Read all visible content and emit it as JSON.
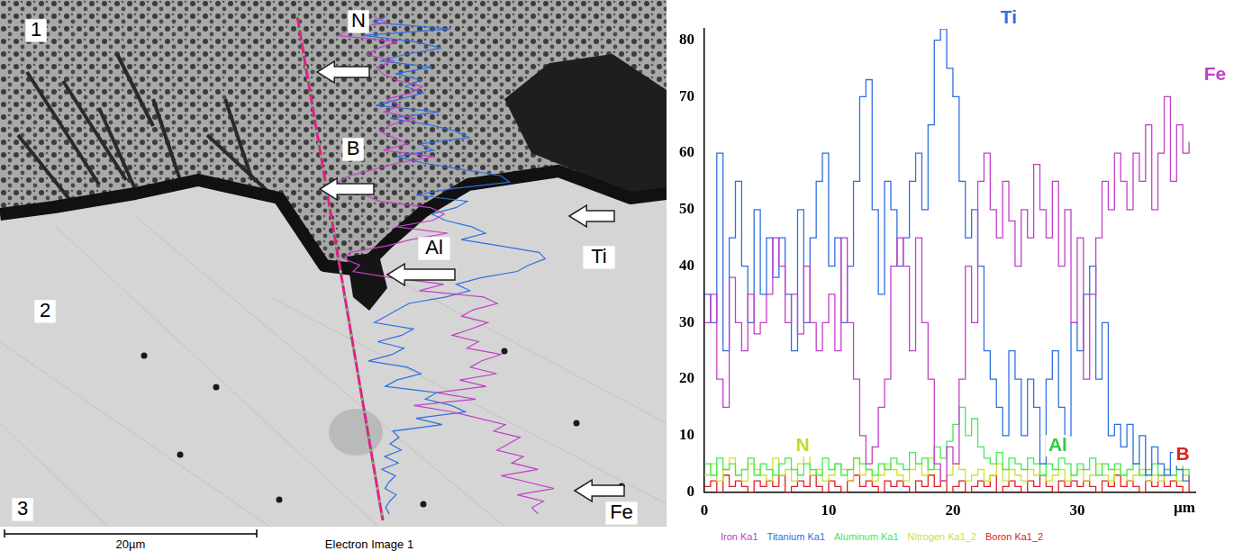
{
  "chart_data": {
    "type": "line",
    "line_style": "steps",
    "grid": false,
    "legend": "bottom",
    "xlabel": "µm",
    "xlim": [
      0,
      39.5
    ],
    "xticks": [
      0,
      10,
      20,
      30
    ],
    "ylim": [
      0,
      82
    ],
    "yticks": [
      0,
      10,
      20,
      30,
      40,
      50,
      60,
      70,
      80
    ],
    "x": [
      0,
      0.5,
      1,
      1.5,
      2,
      2.5,
      3,
      3.5,
      4,
      4.5,
      5,
      5.5,
      6,
      6.5,
      7,
      7.5,
      8,
      8.5,
      9,
      9.5,
      10,
      10.5,
      11,
      11.5,
      12,
      12.5,
      13,
      13.5,
      14,
      14.5,
      15,
      15.5,
      16,
      16.5,
      17,
      17.5,
      18,
      18.5,
      19,
      19.5,
      20,
      20.5,
      21,
      21.5,
      22,
      22.5,
      23,
      23.5,
      24,
      24.5,
      25,
      25.5,
      26,
      26.5,
      27,
      27.5,
      28,
      28.5,
      29,
      29.5,
      30,
      30.5,
      31,
      31.5,
      32,
      32.5,
      33,
      33.5,
      34,
      34.5,
      35,
      35.5,
      36,
      36.5,
      37,
      37.5,
      38,
      38.5,
      39
    ],
    "series": [
      {
        "name": "Iron Ka1",
        "color": "#c23fc8",
        "values": [
          30,
          35,
          20,
          15,
          38,
          30,
          25,
          35,
          28,
          30,
          35,
          45,
          40,
          30,
          35,
          28,
          40,
          30,
          25,
          30,
          35,
          25,
          45,
          30,
          20,
          10,
          5,
          8,
          15,
          20,
          40,
          45,
          40,
          25,
          45,
          30,
          20,
          5,
          2,
          8,
          5,
          20,
          40,
          30,
          55,
          60,
          50,
          45,
          55,
          48,
          40,
          50,
          45,
          58,
          50,
          45,
          55,
          40,
          50,
          30,
          45,
          20,
          35,
          45,
          55,
          50,
          60,
          55,
          50,
          60,
          55,
          65,
          50,
          60,
          70,
          55,
          65,
          60,
          62
        ]
      },
      {
        "name": "Titanium Ka1",
        "color": "#2f6fe0",
        "values": [
          35,
          30,
          60,
          25,
          45,
          55,
          40,
          30,
          50,
          35,
          45,
          38,
          45,
          35,
          25,
          50,
          30,
          45,
          55,
          60,
          40,
          45,
          30,
          40,
          55,
          70,
          73,
          50,
          35,
          55,
          50,
          40,
          45,
          55,
          60,
          50,
          65,
          80,
          82,
          75,
          70,
          55,
          45,
          50,
          40,
          25,
          20,
          15,
          10,
          25,
          20,
          10,
          20,
          15,
          5,
          20,
          25,
          15,
          10,
          30,
          25,
          35,
          40,
          20,
          30,
          10,
          12,
          8,
          12,
          5,
          10,
          3,
          8,
          5,
          3,
          7,
          4,
          2,
          3
        ]
      },
      {
        "name": "Aluminum Ka1",
        "color": "#44e855",
        "values": [
          5,
          3,
          6,
          4,
          5,
          3,
          4,
          6,
          3,
          5,
          4,
          3,
          5,
          6,
          4,
          3,
          5,
          4,
          3,
          6,
          4,
          5,
          3,
          4,
          6,
          5,
          4,
          3,
          5,
          4,
          6,
          5,
          4,
          7,
          5,
          6,
          4,
          8,
          6,
          9,
          12,
          15,
          10,
          13,
          8,
          6,
          5,
          7,
          4,
          6,
          5,
          4,
          6,
          5,
          3,
          5,
          4,
          6,
          5,
          3,
          5,
          4,
          6,
          3,
          5,
          4,
          5,
          3,
          4,
          5,
          3,
          4,
          5,
          3,
          4,
          3,
          5,
          4,
          3
        ]
      },
      {
        "name": "Nitrogen Ka1_2",
        "color": "#cfe02e",
        "values": [
          3,
          5,
          2,
          4,
          6,
          3,
          2,
          5,
          4,
          3,
          2,
          6,
          3,
          4,
          2,
          5,
          7,
          3,
          4,
          2,
          3,
          5,
          4,
          2,
          6,
          3,
          4,
          2,
          3,
          5,
          4,
          3,
          2,
          4,
          5,
          3,
          6,
          4,
          2,
          3,
          5,
          4,
          2,
          3,
          4,
          2,
          3,
          5,
          2,
          4,
          3,
          2,
          4,
          3,
          5,
          2,
          3,
          4,
          2,
          3,
          4,
          2,
          3,
          5,
          3,
          2,
          4,
          3,
          2,
          3,
          4,
          2,
          3,
          2,
          4,
          3,
          2,
          3,
          2
        ]
      },
      {
        "name": "Boron Ka1_2",
        "color": "#e02020",
        "values": [
          1,
          2,
          0,
          3,
          1,
          2,
          1,
          0,
          2,
          1,
          2,
          1,
          3,
          0,
          1,
          2,
          1,
          3,
          1,
          0,
          2,
          1,
          0,
          2,
          3,
          1,
          2,
          1,
          0,
          2,
          1,
          2,
          1,
          0,
          2,
          1,
          3,
          1,
          2,
          0,
          1,
          2,
          0,
          1,
          2,
          1,
          3,
          0,
          1,
          2,
          1,
          0,
          2,
          1,
          3,
          1,
          0,
          2,
          1,
          2,
          1,
          2,
          1,
          0,
          2,
          1,
          3,
          1,
          2,
          1,
          0,
          2,
          1,
          3,
          1,
          2,
          1,
          0,
          2
        ]
      }
    ],
    "annotations": [
      {
        "text": "Ti",
        "color": "#2f6fe0"
      },
      {
        "text": "Fe",
        "color": "#c23fc8"
      },
      {
        "text": "N",
        "color": "#c6d820"
      },
      {
        "text": "Al",
        "color": "#33cc44"
      },
      {
        "text": "B",
        "color": "#e02020"
      }
    ]
  },
  "image": {
    "caption": "Electron Image 1",
    "scale_bar": "20µm",
    "region_labels": [
      "1",
      "2",
      "3"
    ],
    "element_labels": [
      "N",
      "B",
      "Al",
      "Ti",
      "Fe"
    ]
  }
}
